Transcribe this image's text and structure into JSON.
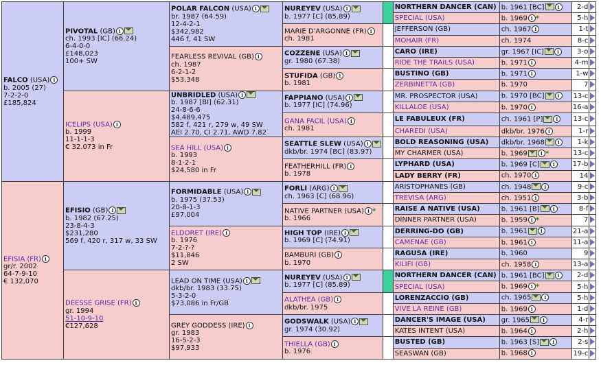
{
  "gen1": [
    {
      "name": "FALCO",
      "country": "(USA)",
      "bold": true,
      "link": false,
      "lines": [
        "b. 2005 (27)",
        "7-2-2-0",
        "£185,824"
      ],
      "sex": "male"
    },
    {
      "name": "EFISIA",
      "country": "(FR)",
      "bold": false,
      "link": true,
      "lines": [
        "gr/r. 2002",
        "64-7-9-10",
        "€ 132,070"
      ],
      "sex": "female"
    }
  ],
  "gen2": [
    {
      "name": "PIVOTAL",
      "country": "(GB)",
      "bold": true,
      "link": false,
      "lines": [
        "ch. 1993 [IC] (66.24)",
        "6-4-0-0",
        "£148,023",
        "100+ SW"
      ],
      "sex": "male",
      "env": true
    },
    {
      "name": "ICELIPS",
      "country": "(USA)",
      "bold": false,
      "link": true,
      "lines": [
        "b. 1999",
        "11-1-1-3",
        "€ 32.073 in Fr"
      ],
      "sex": "female"
    },
    {
      "name": "EFISIO",
      "country": "(GB)",
      "bold": true,
      "link": false,
      "lines": [
        "b. 1982 (67.25)",
        "23-8-4-3",
        "$231,280",
        "569 f, 420 r, 317 w, 33 SW"
      ],
      "sex": "male",
      "env": true
    },
    {
      "name": "DEESSE GRISE",
      "country": "(FR)",
      "bold": false,
      "link": true,
      "lines": [
        "gr. 1994",
        "51-10-9-10",
        "€127,628"
      ],
      "sex": "female",
      "underline_line": 1
    }
  ],
  "gen3": [
    {
      "name": "POLAR FALCON",
      "country": "(USA)",
      "bold": true,
      "link": false,
      "lines": [
        "br. 1987 (64.59)",
        "12-4-2-1",
        "$342,982",
        "446 f, 41 SW"
      ],
      "sex": "male",
      "env": true
    },
    {
      "name": "FEARLESS REVIVAL",
      "country": "(GB)",
      "bold": false,
      "link": false,
      "lines": [
        "ch. 1987",
        "6-2-1-2",
        "$53,348"
      ],
      "sex": "female"
    },
    {
      "name": "UNBRIDLED",
      "country": "(USA)",
      "bold": true,
      "link": false,
      "lines": [
        "b. 1987 [BI] (62.31)",
        "24-8-6-6",
        "$4,489,475",
        "582 f, 421 r, 279 w, 49 SW",
        "AEI 2.70, CI 2.71, AWD 7.82"
      ],
      "sex": "male",
      "env": true
    },
    {
      "name": "SEA HILL",
      "country": "(USA)",
      "bold": false,
      "link": true,
      "lines": [
        "b. 1993",
        "8-1-2-1",
        "$24,580 in Fr"
      ],
      "sex": "female"
    },
    {
      "name": "FORMIDABLE",
      "country": "(USA)",
      "bold": true,
      "link": false,
      "lines": [
        "b. 1975 (37.53)",
        "20-8-1-3",
        "£97,004"
      ],
      "sex": "male",
      "env": true
    },
    {
      "name": "ELDORET",
      "country": "(IRE)",
      "bold": false,
      "link": true,
      "lines": [
        "b. 1976",
        "7-2-?-?",
        "$11,846",
        "2 SW"
      ],
      "sex": "female"
    },
    {
      "name": "LEAD ON TIME",
      "country": "(USA)",
      "bold": false,
      "link": false,
      "lines": [
        "dkb/br. 1983 (33.75)",
        "5-3-2-0",
        "$73,086 in Fr/GB"
      ],
      "sex": "male",
      "env": true
    },
    {
      "name": "GREY GODDESS",
      "country": "(IRE)",
      "bold": false,
      "link": false,
      "lines": [
        "gr. 1983",
        "16-5-2-3",
        "$97,933"
      ],
      "sex": "female"
    }
  ],
  "gen4": [
    {
      "name": "NUREYEV",
      "country": "(USA)",
      "bold": true,
      "link": false,
      "lines": [
        "b. 1977 [C] (85.89)"
      ],
      "sex": "male",
      "env": true,
      "accent": true
    },
    {
      "name": "MARIE D'ARGONNE",
      "country": "(FR)",
      "bold": false,
      "link": false,
      "lines": [
        "ch. 1981"
      ],
      "sex": "female",
      "info": true
    },
    {
      "name": "COZZENE",
      "country": "(USA)",
      "bold": true,
      "link": false,
      "lines": [
        "gr. 1980 (67.38)"
      ],
      "sex": "male",
      "env": true
    },
    {
      "name": "STUFIDA",
      "country": "(GB)",
      "bold": true,
      "link": false,
      "lines": [
        "b. 1981"
      ],
      "sex": "female"
    },
    {
      "name": "FAPPIANO",
      "country": "(USA)",
      "bold": true,
      "link": false,
      "lines": [
        "b. 1977 [IC] (74.96)"
      ],
      "sex": "male",
      "env": true
    },
    {
      "name": "GANA FACIL",
      "country": "(USA)",
      "bold": false,
      "link": true,
      "lines": [
        "ch. 1981"
      ],
      "sex": "female",
      "info": true
    },
    {
      "name": "SEATTLE SLEW",
      "country": "(USA)",
      "bold": true,
      "link": false,
      "lines": [
        "dkb/br. 1974 [BC] (83.97)"
      ],
      "sex": "male",
      "env": true
    },
    {
      "name": "FEATHERHILL",
      "country": "(FR)",
      "bold": false,
      "link": false,
      "lines": [
        "b. 1978"
      ],
      "sex": "female",
      "info": true
    },
    {
      "name": "FORLI",
      "country": "(ARG)",
      "bold": true,
      "link": false,
      "lines": [
        "ch. 1963 [C] (68.96)"
      ],
      "sex": "male",
      "env": true
    },
    {
      "name": "NATIVE PARTNER",
      "country": "(USA)",
      "bold": false,
      "link": false,
      "lines": [
        "b. 1966"
      ],
      "sex": "female",
      "star": true
    },
    {
      "name": "HIGH TOP",
      "country": "(IRE)",
      "bold": true,
      "link": false,
      "lines": [
        "b. 1969 [C] (74.91)"
      ],
      "sex": "male",
      "env": true
    },
    {
      "name": "BAMBURI",
      "country": "(GB)",
      "bold": false,
      "link": false,
      "lines": [
        "b. 1970"
      ],
      "sex": "female",
      "info": true
    },
    {
      "name": "NUREYEV",
      "country": "(USA)",
      "bold": true,
      "link": false,
      "lines": [
        "b. 1977 [C] (85.89)"
      ],
      "sex": "male",
      "env": true,
      "accent": true
    },
    {
      "name": "ALATHEA",
      "country": "(GB)",
      "bold": false,
      "link": true,
      "lines": [
        "dkb/br. 1975"
      ],
      "sex": "female"
    },
    {
      "name": "GODSWALK",
      "country": "(USA)",
      "bold": true,
      "link": false,
      "lines": [
        "gr. 1974 (30.92)"
      ],
      "sex": "male",
      "env": true
    },
    {
      "name": "THIELLA",
      "country": "(GB)",
      "bold": false,
      "link": true,
      "lines": [
        "b. 1976"
      ],
      "sex": "female"
    }
  ],
  "gen5": [
    {
      "name": "NORTHERN DANCER (CAN)",
      "bold": true,
      "link": false,
      "info": "b. 1961 [BC]",
      "env": true,
      "info_icon": true,
      "stat": "2-d",
      "sex": "male"
    },
    {
      "name": "SPECIAL (USA)",
      "bold": false,
      "link": true,
      "info": "b. 1969",
      "info_icon": true,
      "star": true,
      "stat": "5-h",
      "sex": "female"
    },
    {
      "name": "JEFFERSON (GB)",
      "bold": false,
      "link": false,
      "info": "ch. 1967",
      "info_icon": true,
      "stat": "1-t",
      "sex": "male"
    },
    {
      "name": "MOHAIR (FR)",
      "bold": false,
      "link": true,
      "info": "ch. 1974",
      "stat": "8-c",
      "sex": "female"
    },
    {
      "name": "CARO (IRE)",
      "bold": true,
      "link": false,
      "info": "gr. 1967 [IC]",
      "info_icon": true,
      "env": true,
      "stat": "3-o",
      "sex": "male"
    },
    {
      "name": "RIDE THE TRAILS (USA)",
      "bold": false,
      "link": true,
      "info": "b. 1971",
      "info_icon": true,
      "stat": "4-m",
      "sex": "female"
    },
    {
      "name": "BUSTINO (GB)",
      "bold": true,
      "link": false,
      "info": "b. 1971",
      "info_icon": true,
      "stat": "1-w",
      "sex": "male"
    },
    {
      "name": "ZERBINETTA (GB)",
      "bold": false,
      "link": true,
      "info": "b. 1970",
      "stat": "7",
      "sex": "female"
    },
    {
      "name": "MR. PROSPECTOR (USA)",
      "bold": false,
      "link": false,
      "info": "b. 1970 [BC]",
      "info_icon": true,
      "env": true,
      "stat": "13-c",
      "sex": "male"
    },
    {
      "name": "KILLALOE (USA)",
      "bold": false,
      "link": true,
      "info": "b. 1970",
      "info_icon": true,
      "stat": "16-a",
      "sex": "female"
    },
    {
      "name": "LE FABULEUX (FR)",
      "bold": true,
      "link": false,
      "info": "ch. 1961 [P]",
      "info_icon": true,
      "env": true,
      "stat": "13-c",
      "sex": "male"
    },
    {
      "name": "CHAREDI (USA)",
      "bold": false,
      "link": true,
      "info": "dkb/br. 1976",
      "info_icon": true,
      "stat": "1-r",
      "sex": "female"
    },
    {
      "name": "BOLD REASONING (USA)",
      "bold": true,
      "link": false,
      "info": "dkb/br. 1968",
      "info_icon": true,
      "env": true,
      "stat": "1-k",
      "sex": "male"
    },
    {
      "name": "MY CHARMER (USA)",
      "bold": false,
      "link": false,
      "info": "b. 1969",
      "info_icon": true,
      "env": true,
      "star": true,
      "stat": "13-c",
      "sex": "female"
    },
    {
      "name": "LYPHARD (USA)",
      "bold": true,
      "link": false,
      "info": "b. 1969 [C]",
      "info_icon": true,
      "env": true,
      "stat": "17-b",
      "sex": "male"
    },
    {
      "name": "LADY BERRY (FR)",
      "bold": true,
      "link": false,
      "info": "ch. 1970",
      "info_icon": true,
      "stat": "14",
      "sex": "female"
    },
    {
      "name": "ARISTOPHANES (GB)",
      "bold": false,
      "link": false,
      "info": "ch. 1948",
      "info_icon": true,
      "env": true,
      "stat": "9-c",
      "sex": "male"
    },
    {
      "name": "TREVISA (ARG)",
      "bold": false,
      "link": true,
      "info": "ch. 1951",
      "info_icon": true,
      "stat": "3-b",
      "sex": "female"
    },
    {
      "name": "RAISE A NATIVE (USA)",
      "bold": true,
      "link": false,
      "info": "b. 1961 [B]",
      "env": true,
      "info_icon": true,
      "stat": "8-f",
      "sex": "male"
    },
    {
      "name": "DINNER PARTNER (USA)",
      "bold": false,
      "link": false,
      "info": "b. 1959",
      "info_icon": true,
      "star": true,
      "stat": "7",
      "sex": "female"
    },
    {
      "name": "DERRING-DO (GB)",
      "bold": true,
      "link": false,
      "info": "b. 1961",
      "env": true,
      "info_icon": true,
      "stat": "21-a",
      "sex": "male"
    },
    {
      "name": "CAMENAE (GB)",
      "bold": false,
      "link": true,
      "info": "b. 1961",
      "info_icon": true,
      "stat": "11-a",
      "sex": "female"
    },
    {
      "name": "RAGUSA (IRE)",
      "bold": true,
      "link": false,
      "info": "b. 1960",
      "stat": "9",
      "sex": "male"
    },
    {
      "name": "KILIFI (GB)",
      "bold": false,
      "link": true,
      "info": "ch. 1958",
      "info_icon": true,
      "stat": "13-a",
      "sex": "female"
    },
    {
      "name": "NORTHERN DANCER (CAN)",
      "bold": true,
      "link": false,
      "info": "b. 1961 [BC]",
      "env": true,
      "info_icon": true,
      "stat": "2-d",
      "sex": "male"
    },
    {
      "name": "SPECIAL (USA)",
      "bold": false,
      "link": true,
      "info": "b. 1969",
      "info_icon": true,
      "star": true,
      "stat": "5-h",
      "sex": "female"
    },
    {
      "name": "LORENZACCIO (GB)",
      "bold": true,
      "link": false,
      "info": "ch. 1965",
      "env": true,
      "info_icon": true,
      "stat": "5-h",
      "sex": "male"
    },
    {
      "name": "VIVE LA REINE (GB)",
      "bold": false,
      "link": true,
      "info": "b. 1969",
      "info_icon": true,
      "stat": "1-d",
      "sex": "female"
    },
    {
      "name": "DANCER'S IMAGE (USA)",
      "bold": true,
      "link": false,
      "info": "gr. 1965",
      "env": true,
      "info_icon": true,
      "stat": "4-r",
      "sex": "male"
    },
    {
      "name": "KATES INTENT (USA)",
      "bold": false,
      "link": false,
      "info": "b. 1964",
      "info_icon": true,
      "stat": "2-h",
      "sex": "female"
    },
    {
      "name": "BUSTED (GB)",
      "bold": true,
      "link": false,
      "info": "b. 1963 [S]",
      "env": true,
      "info_icon": true,
      "stat": "2-s",
      "sex": "male"
    },
    {
      "name": "SEASWAN (GB)",
      "bold": false,
      "link": false,
      "info": "b. 1968",
      "info_icon": true,
      "stat": "19-c",
      "sex": "female"
    }
  ]
}
